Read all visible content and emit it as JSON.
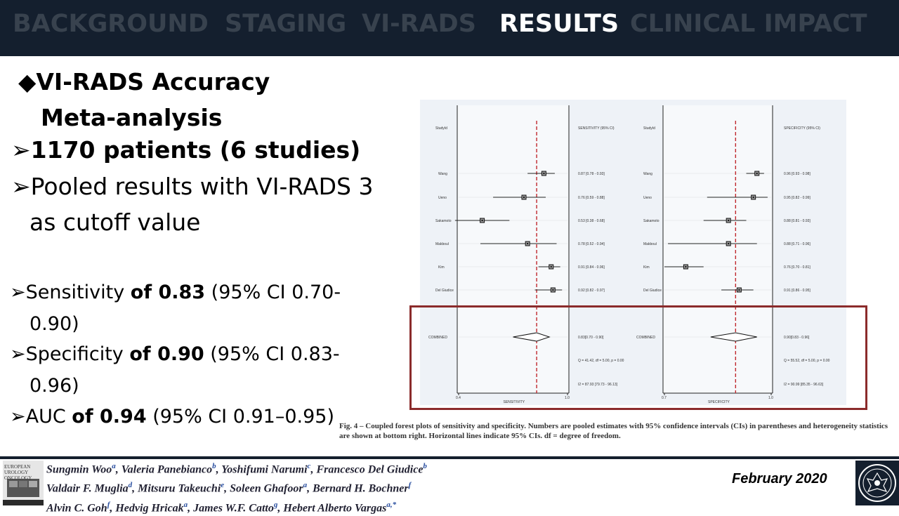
{
  "nav": {
    "tabs": [
      {
        "label": "BACKGROUND",
        "active": false
      },
      {
        "label": "STAGING",
        "active": false
      },
      {
        "label": "VI-RADS",
        "active": false
      },
      {
        "label": "RESULTS",
        "active": true
      },
      {
        "label": "CLINICAL IMPACT",
        "active": false
      }
    ]
  },
  "content": {
    "heading_line1": "VI-RADS Accuracy",
    "heading_line2": "Meta-analysis",
    "bullet1": "1170 patients (6 studies)",
    "bullet2_line1": "Pooled results with VI-RADS 3",
    "bullet2_line2": "as cutoff value",
    "sens": {
      "label": "Sensitivity ",
      "value": "of 0.83",
      "ci_line1": " (95% CI 0.70-",
      "ci_line2": "0.90)"
    },
    "spec": {
      "label": "Specificity ",
      "value": "of 0.90",
      "ci_line1": " (95% CI 0.83-",
      "ci_line2": "0.96)"
    },
    "auc": {
      "label": "AUC ",
      "value": "of 0.94",
      "ci": " (95% CI 0.91–0.95)"
    }
  },
  "forest_plot": {
    "left_header": "StudyId",
    "left_stat_header": "SENSITIVITY (95% CI)",
    "right_header": "StudyId",
    "right_stat_header": "SPECIFICITY (95% CI)",
    "studies": [
      {
        "name": "Wang",
        "sens": 0.87,
        "sens_lo": 0.78,
        "sens_hi": 0.93,
        "sens_text": "0.87 [0.78 - 0.93]",
        "spec": 0.96,
        "spec_lo": 0.93,
        "spec_hi": 0.98,
        "spec_text": "0.96 [0.93 - 0.98]"
      },
      {
        "name": "Ueno",
        "sens": 0.76,
        "sens_lo": 0.59,
        "sens_hi": 0.88,
        "sens_text": "0.76 [0.59 - 0.88]",
        "spec": 0.95,
        "spec_lo": 0.82,
        "spec_hi": 0.99,
        "spec_text": "0.95 [0.82 - 0.99]"
      },
      {
        "name": "Sakamoto",
        "sens": 0.53,
        "sens_lo": 0.38,
        "sens_hi": 0.68,
        "sens_text": "0.53 [0.38 - 0.68]",
        "spec": 0.88,
        "spec_lo": 0.81,
        "spec_hi": 0.93,
        "spec_text": "0.88 [0.81 - 0.93]"
      },
      {
        "name": "Makboul",
        "sens": 0.78,
        "sens_lo": 0.52,
        "sens_hi": 0.94,
        "sens_text": "0.78 [0.52 - 0.94]",
        "spec": 0.88,
        "spec_lo": 0.71,
        "spec_hi": 0.96,
        "spec_text": "0.88 [0.71 - 0.96]"
      },
      {
        "name": "Kim",
        "sens": 0.91,
        "sens_lo": 0.84,
        "sens_hi": 0.96,
        "sens_text": "0.91 [0.84 - 0.96]",
        "spec": 0.76,
        "spec_lo": 0.7,
        "spec_hi": 0.81,
        "spec_text": "0.76 [0.70 - 0.81]"
      },
      {
        "name": "Del Giudice",
        "sens": 0.92,
        "sens_lo": 0.82,
        "sens_hi": 0.97,
        "sens_text": "0.92 [0.82 - 0.97]",
        "spec": 0.91,
        "spec_lo": 0.86,
        "spec_hi": 0.95,
        "spec_text": "0.91 [0.86 - 0.95]"
      }
    ],
    "combined": {
      "label": "COMBINED",
      "sens": 0.83,
      "sens_lo": 0.7,
      "sens_hi": 0.9,
      "sens_text": "0.83[0.70 - 0.90]",
      "spec": 0.9,
      "spec_lo": 0.83,
      "spec_hi": 0.96,
      "spec_text": "0.90[0.83 - 0.96]"
    },
    "left_q": "Q = 41.42, df = 5.00, p = 0.00",
    "left_i2": "I2 = 87.93 [79.73 - 96.13]",
    "right_q": "Q = 55.52, df = 5.00, p = 0.00",
    "right_i2": "I2 = 90.99 [85.35 - 96.63]",
    "left_axis": {
      "label": "SENSITIVITY",
      "min": 0.4,
      "max": 1.0,
      "ticks": [
        "0.4",
        "1.0"
      ]
    },
    "right_axis": {
      "label": "SPECIFICITY",
      "min": 0.7,
      "max": 1.0,
      "ticks": [
        "0.7",
        "1.0"
      ]
    },
    "colors": {
      "ref_line": "#c0282d",
      "highlight_box": "#8b2b2b"
    }
  },
  "caption": "Fig. 4 – Coupled forest plots of sensitivity and specificity. Numbers are pooled estimates with 95% confidence intervals (CIs) in parentheses and heterogeneity statistics are shown at bottom right. Horizontal lines indicate 95% CIs. df = degree of freedom.",
  "footer": {
    "journal_label": "EUROPEAN UROLOGY ONCOLOGY",
    "authors_line1": [
      {
        "name": "Sungmin Woo",
        "sup": "a"
      },
      {
        "name": ", Valeria Panebianco",
        "sup": "b"
      },
      {
        "name": ", Yoshifumi Narumi",
        "sup": "c"
      },
      {
        "name": ", Francesco Del Giudice",
        "sup": "b"
      }
    ],
    "authors_line2": [
      {
        "name": "Valdair F. Muglia",
        "sup": "d"
      },
      {
        "name": ", Mitsuru Takeuchi",
        "sup": "e"
      },
      {
        "name": ", Soleen Ghafoor",
        "sup": "a"
      },
      {
        "name": ", Bernard H. Bochner",
        "sup": "f"
      }
    ],
    "authors_line3": [
      {
        "name": "Alvin C. Goh",
        "sup": "f"
      },
      {
        "name": ", Hedvig Hricak",
        "sup": "a"
      },
      {
        "name": ", James W.F. Catto",
        "sup": "g"
      },
      {
        "name": ", Hebert Alberto Vargas",
        "sup": "a,*"
      }
    ],
    "date": "February 2020"
  }
}
